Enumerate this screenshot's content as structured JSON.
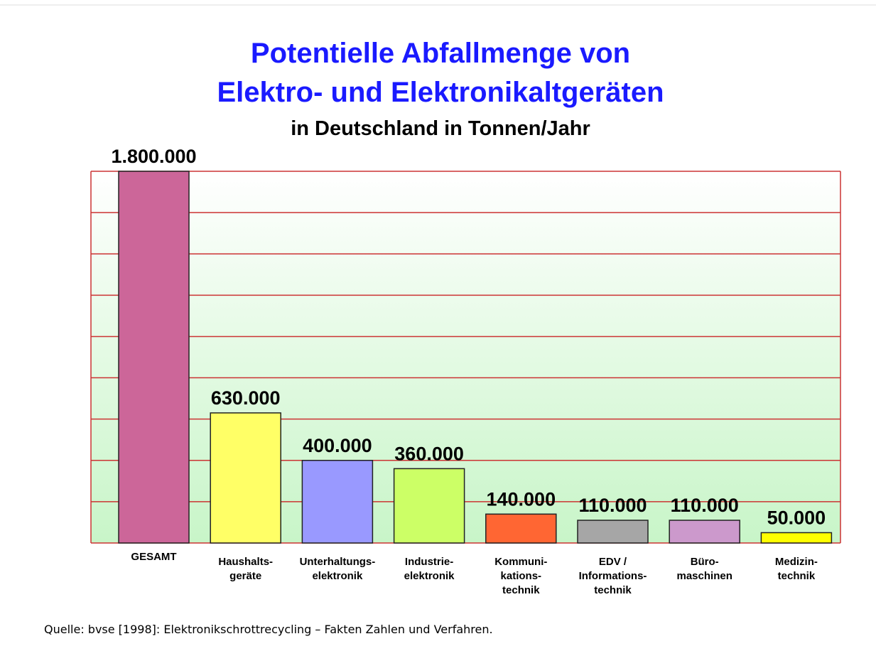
{
  "chart_data": {
    "type": "bar",
    "title": "Potentielle Abfallmenge von",
    "title_line2": "Elektro- und Elektronikaltgeräten",
    "subtitle": "in Deutschland in Tonnen/Jahr",
    "categories": [
      "GESAMT",
      "Haushalts-\ngeräte",
      "Unterhaltungs-\nelektronik",
      "Industrie-\nelektronik",
      "Kommuni-\nkations-\ntechnik",
      "EDV /\nInformations-\ntechnik",
      "Büro-\nmaschinen",
      "Medizin-\ntechnik"
    ],
    "values": [
      1800000,
      630000,
      400000,
      360000,
      140000,
      110000,
      110000,
      50000
    ],
    "value_labels": [
      "1.800.000",
      "630.000",
      "400.000",
      "360.000",
      "140.000",
      "110.000",
      "110.000",
      "50.000"
    ],
    "colors": [
      "#cc6699",
      "#ffff66",
      "#9999ff",
      "#ccff66",
      "#ff6633",
      "#a6a6a6",
      "#cc99cc",
      "#ffff00"
    ],
    "ylim": [
      0,
      1800000
    ],
    "yticks": [
      0,
      200000,
      400000,
      600000,
      800000,
      1000000,
      1200000,
      1400000,
      1600000,
      1800000
    ],
    "grid": true,
    "grid_color": "#cc3333",
    "source": "Quelle: bvse [1998]: Elektronikschrottrecycling – Fakten Zahlen und Verfahren."
  }
}
